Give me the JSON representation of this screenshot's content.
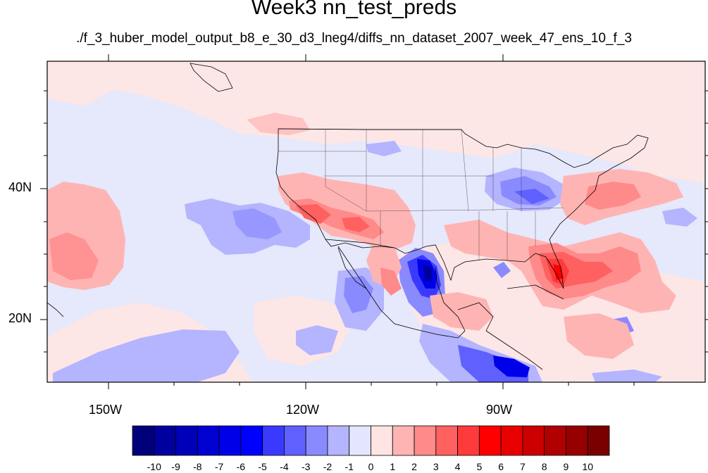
{
  "title": "Week3 nn_test_preds",
  "subtitle": "./f_3_huber_model_output_b8_e_30_d3_lneg4/diffs_nn_dataset_2007_week_47_ens_10_f_3",
  "latitude_labels": [
    "40N",
    "20N"
  ],
  "longitude_labels": [
    "150W",
    "120W",
    "90W"
  ],
  "colorbar": {
    "labels": [
      "-10",
      "-9",
      "-8",
      "-7",
      "-6",
      "-5",
      "-4",
      "-3",
      "-2",
      "-1",
      "0",
      "1",
      "2",
      "3",
      "4",
      "5",
      "6",
      "7",
      "8",
      "9",
      "10"
    ],
    "colors": [
      "#00007a",
      "#00009e",
      "#0000b8",
      "#0000d0",
      "#0000e8",
      "#0000ff",
      "#3a3aff",
      "#6060ff",
      "#8a8aff",
      "#b4b4ff",
      "#e4e6ff",
      "#ffe4e4",
      "#ffb4b4",
      "#ff8a8a",
      "#ff6060",
      "#ff3a3a",
      "#ff0000",
      "#e80000",
      "#cc0000",
      "#b00000",
      "#960000",
      "#7a0000"
    ]
  },
  "colors": {
    "neutral_cool": "#e6e8fb",
    "neutral_warm": "#fde6e6",
    "land_border": "#000000"
  }
}
